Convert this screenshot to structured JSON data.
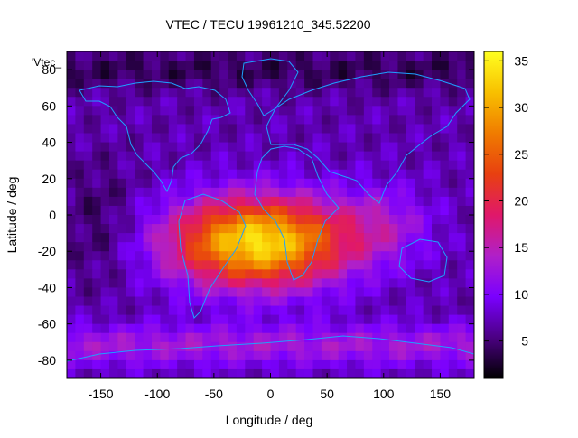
{
  "chart_data": {
    "type": "heatmap",
    "title": "VTEC / TECU 19961210_345.52200",
    "xlabel": "Longitude / deg",
    "ylabel": "Latitude / deg",
    "legend_key": "'Vtec_",
    "xlim": [
      -180,
      180
    ],
    "ylim": [
      -90,
      90
    ],
    "xticks": [
      -150,
      -100,
      -50,
      0,
      50,
      100,
      150
    ],
    "yticks": [
      -80,
      -60,
      -40,
      -20,
      0,
      20,
      40,
      60,
      80
    ],
    "colorbar": {
      "range": [
        1,
        36
      ],
      "ticks": [
        5,
        10,
        15,
        20,
        25,
        30,
        35
      ],
      "palette": [
        "#000000",
        "#4b0082",
        "#7a00ff",
        "#b020c8",
        "#e0186a",
        "#e84010",
        "#f07c00",
        "#f8c000",
        "#ffff20"
      ]
    },
    "peak": {
      "lon": -10,
      "lat": -15,
      "value": 34
    },
    "background_tecu": 7,
    "coastline_color": "#1ea0ff"
  }
}
